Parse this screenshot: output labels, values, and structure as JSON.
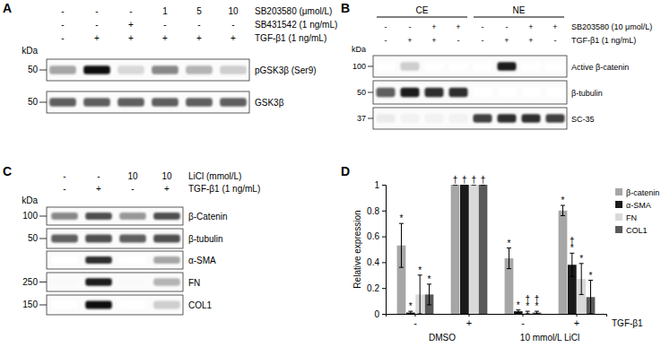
{
  "blots": [
    {
      "label": "A",
      "kda_title": "kDa",
      "treatments": [
        {
          "name": "SB203580 (μmol/L)",
          "lanes": [
            "-",
            "-",
            "-",
            "1",
            "5",
            "10"
          ]
        },
        {
          "name": "SB431542 (1 ng/mL)",
          "lanes": [
            "-",
            "-",
            "+",
            "-",
            "-",
            "-"
          ]
        },
        {
          "name": "TGF-β1 (1 ng/mL)",
          "lanes": [
            "-",
            "+",
            "+",
            "+",
            "+",
            "+"
          ]
        }
      ],
      "rows": [
        {
          "name": "pGSK3β (Ser9)",
          "kda": "50",
          "intensity": [
            0.45,
            0.95,
            0.25,
            0.55,
            0.4,
            0.3
          ]
        },
        {
          "name": "GSK3β",
          "kda": "50",
          "intensity": [
            0.7,
            0.7,
            0.7,
            0.7,
            0.7,
            0.7
          ]
        }
      ]
    },
    {
      "label": "B",
      "kda_title": "kDa",
      "lane_groups": [
        "CE",
        "NE"
      ],
      "treatments": [
        {
          "name": "SB203580 (10 μmol/L)",
          "lanes": [
            "-",
            "-",
            "+",
            "+",
            "-",
            "-",
            "+",
            "+"
          ]
        },
        {
          "name": "TGF-β1 (1 ng/mL)",
          "lanes": [
            "-",
            "+",
            "+",
            "-",
            "-",
            "+",
            "+",
            "-"
          ]
        }
      ],
      "rows": [
        {
          "name": "Active β-catenin",
          "kda": "100",
          "intensity": [
            0,
            0.3,
            0,
            0,
            0,
            0.9,
            0,
            0
          ]
        },
        {
          "name": "β-tubulin",
          "kda": "50",
          "intensity": [
            0.7,
            0.9,
            0.85,
            0.85,
            0,
            0,
            0,
            0
          ]
        },
        {
          "name": "SC-35",
          "kda": "37",
          "intensity": [
            0.15,
            0.1,
            0.1,
            0.1,
            0.8,
            0.85,
            0.85,
            0.8
          ]
        }
      ]
    },
    {
      "label": "C",
      "kda_title": "kDa",
      "treatments": [
        {
          "name": "LiCl (mmol/L)",
          "lanes": [
            "-",
            "-",
            "10",
            "10"
          ]
        },
        {
          "name": "TGF-β1 (1 ng/mL)",
          "lanes": [
            "-",
            "+",
            "-",
            "+"
          ]
        }
      ],
      "rows": [
        {
          "name": "β-Catenin",
          "kda": "100",
          "intensity": [
            0.55,
            0.75,
            0.5,
            0.75
          ]
        },
        {
          "name": "β-tubulin",
          "kda": "50",
          "intensity": [
            0.7,
            0.75,
            0.7,
            0.75
          ]
        },
        {
          "name": "α-SMA",
          "intensity": [
            0,
            0.85,
            0,
            0.45
          ]
        },
        {
          "name": "FN",
          "kda": "250",
          "intensity": [
            0.05,
            0.9,
            0.05,
            0.4
          ]
        },
        {
          "name": "COL1",
          "kda": "150",
          "intensity": [
            0,
            0.95,
            0,
            0.3
          ]
        }
      ]
    }
  ],
  "chart_data": {
    "type": "bar",
    "title": "D",
    "y_label": "Relative expression",
    "x_label": "TGF-β1",
    "categories": [
      "-",
      "+",
      "-",
      "+"
    ],
    "group_labels": [
      "DMSO",
      "10 mmol/L LiCl"
    ],
    "ylim": [
      0,
      1
    ],
    "yticks": [
      0,
      0.2,
      0.4,
      0.6,
      0.8,
      1
    ],
    "grid": false,
    "legend": "top-right",
    "series": [
      {
        "name": "β-catenin",
        "color": "#a6a6a6",
        "values": [
          0.53,
          1,
          0.43,
          0.8
        ],
        "errors": [
          0.17,
          0,
          0.08,
          0.04
        ],
        "annotations": [
          [
            "*"
          ],
          [
            "†"
          ],
          [
            "*"
          ],
          [
            "*"
          ]
        ]
      },
      {
        "name": "α-SMA",
        "color": "#1a1a1a",
        "values": [
          0.01,
          1,
          0.02,
          0.38
        ],
        "errors": [
          0.01,
          0,
          0.01,
          0.09
        ],
        "annotations": [
          [
            "*"
          ],
          [
            "†"
          ],
          [
            "*"
          ],
          [
            "†",
            "*"
          ]
        ]
      },
      {
        "name": "FN",
        "color": "#d9d9d9",
        "values": [
          0.15,
          1,
          0.01,
          0.27
        ],
        "errors": [
          0.15,
          0,
          0.01,
          0.12
        ],
        "annotations": [
          [
            "*"
          ],
          [
            "†"
          ],
          [
            "†",
            "*"
          ],
          [
            "*"
          ]
        ]
      },
      {
        "name": "COL1",
        "color": "#595959",
        "values": [
          0.15,
          1,
          0.01,
          0.13
        ],
        "errors": [
          0.08,
          0,
          0.01,
          0.13
        ],
        "annotations": [
          [
            "*"
          ],
          [
            "†"
          ],
          [
            "†",
            "*"
          ],
          [
            "*"
          ]
        ]
      }
    ]
  }
}
